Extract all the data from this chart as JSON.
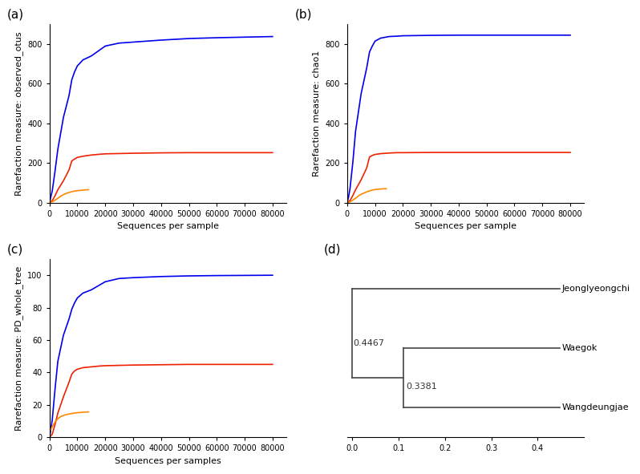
{
  "panel_labels": [
    "(a)",
    "(b)",
    "(c)",
    "(d)"
  ],
  "colors": {
    "blue": "#0000EE",
    "red": "#EE2200",
    "orange": "#FF8800"
  },
  "plot_a": {
    "ylabel": "Rarefaction measure: observed_otus",
    "xlabel": "Sequences per sample",
    "xlim": [
      0,
      85000
    ],
    "ylim": [
      0,
      900
    ],
    "yticks": [
      0,
      200,
      400,
      600,
      800
    ],
    "xticks": [
      0,
      10000,
      20000,
      30000,
      40000,
      50000,
      60000,
      70000,
      80000
    ],
    "blue_x": [
      0,
      500,
      1000,
      2000,
      3000,
      5000,
      7000,
      8000,
      9000,
      10000,
      12000,
      15000,
      18000,
      20000,
      25000,
      30000,
      40000,
      50000,
      60000,
      70000,
      80000
    ],
    "blue_y": [
      0,
      30,
      60,
      160,
      270,
      430,
      540,
      620,
      660,
      690,
      720,
      740,
      770,
      790,
      805,
      810,
      820,
      828,
      832,
      835,
      838
    ],
    "red_x": [
      0,
      500,
      1000,
      2000,
      3000,
      5000,
      7000,
      8000,
      9000,
      10000,
      12000,
      15000,
      18000,
      20000,
      30000,
      40000,
      50000,
      60000,
      70000,
      80000
    ],
    "red_y": [
      0,
      5,
      10,
      35,
      65,
      110,
      165,
      210,
      220,
      228,
      234,
      240,
      244,
      246,
      249,
      251,
      252,
      252,
      252,
      252
    ],
    "orange_x": [
      0,
      500,
      1000,
      2000,
      3000,
      4000,
      5000,
      6000,
      7000,
      8000,
      9000,
      10000,
      12000,
      14000
    ],
    "orange_y": [
      0,
      2,
      4,
      12,
      22,
      32,
      40,
      46,
      51,
      55,
      58,
      60,
      63,
      65
    ]
  },
  "plot_b": {
    "ylabel": "Rarefaction measure: chao1",
    "xlabel": "Sequences per sample",
    "xlim": [
      0,
      85000
    ],
    "ylim": [
      0,
      900
    ],
    "yticks": [
      0,
      200,
      400,
      600,
      800
    ],
    "xticks": [
      0,
      10000,
      20000,
      30000,
      40000,
      50000,
      60000,
      70000,
      80000
    ],
    "blue_x": [
      0,
      500,
      1000,
      2000,
      3000,
      5000,
      7000,
      8000,
      9000,
      10000,
      12000,
      15000,
      18000,
      20000,
      25000,
      30000,
      40000,
      50000,
      60000,
      70000,
      80000
    ],
    "blue_y": [
      0,
      30,
      70,
      200,
      360,
      550,
      680,
      760,
      790,
      815,
      830,
      838,
      840,
      842,
      843,
      844,
      845,
      845,
      845,
      845,
      845
    ],
    "red_x": [
      0,
      500,
      1000,
      2000,
      3000,
      5000,
      7000,
      8000,
      9000,
      10000,
      12000,
      15000,
      18000,
      20000,
      30000,
      40000,
      50000,
      60000,
      70000,
      80000
    ],
    "red_y": [
      0,
      5,
      10,
      35,
      65,
      115,
      175,
      230,
      238,
      243,
      247,
      250,
      252,
      252,
      253,
      253,
      253,
      253,
      253,
      253
    ],
    "orange_x": [
      0,
      500,
      1000,
      2000,
      3000,
      4000,
      5000,
      6000,
      7000,
      8000,
      9000,
      10000,
      12000,
      14000
    ],
    "orange_y": [
      0,
      2,
      4,
      12,
      22,
      33,
      42,
      48,
      54,
      59,
      63,
      66,
      69,
      70
    ]
  },
  "plot_c": {
    "ylabel": "Rarefaction measure: PD_whole_tree",
    "xlabel": "Sequences per samples",
    "xlim": [
      0,
      85000
    ],
    "ylim": [
      0,
      110
    ],
    "yticks": [
      0,
      20,
      40,
      60,
      80,
      100
    ],
    "xticks": [
      0,
      10000,
      20000,
      30000,
      40000,
      50000,
      60000,
      70000,
      80000
    ],
    "blue_x": [
      0,
      500,
      1000,
      2000,
      3000,
      5000,
      7000,
      8000,
      9000,
      10000,
      12000,
      15000,
      18000,
      20000,
      25000,
      30000,
      40000,
      50000,
      60000,
      70000,
      80000
    ],
    "blue_y": [
      0,
      5,
      11,
      30,
      47,
      63,
      73,
      79,
      83,
      86,
      89,
      91,
      94,
      96,
      98,
      98.5,
      99.2,
      99.6,
      99.8,
      99.9,
      100
    ],
    "red_x": [
      0,
      500,
      1000,
      2000,
      3000,
      5000,
      7000,
      8000,
      9000,
      10000,
      12000,
      15000,
      18000,
      20000,
      30000,
      40000,
      50000,
      60000,
      70000,
      80000
    ],
    "red_y": [
      0,
      1,
      2,
      8,
      15,
      25,
      34,
      39,
      41,
      42,
      43,
      43.5,
      44,
      44.2,
      44.6,
      44.8,
      45,
      45,
      45,
      45
    ],
    "orange_x": [
      0,
      500,
      1000,
      2000,
      3000,
      4000,
      5000,
      6000,
      7000,
      8000,
      9000,
      10000,
      12000,
      14000
    ],
    "orange_y": [
      3.5,
      5,
      6.5,
      9.5,
      11.5,
      12.8,
      13.5,
      14,
      14.4,
      14.7,
      15,
      15.2,
      15.5,
      15.7
    ]
  },
  "plot_d": {
    "sites": [
      "Jeonglyeongchi",
      "Waegok",
      "Wangdeungjae"
    ],
    "node_labels": [
      "0.4467",
      "0.3381"
    ],
    "x_root": 0.0,
    "x_internal": 0.1108,
    "x_tip": 0.4467,
    "y_jeo": 2.0,
    "y_wae": 1.0,
    "y_wan": 0.0,
    "xlim": [
      -0.01,
      0.5
    ],
    "ylim": [
      -0.5,
      2.5
    ],
    "xticks": [
      0.0,
      0.1,
      0.2,
      0.3,
      0.4
    ]
  }
}
